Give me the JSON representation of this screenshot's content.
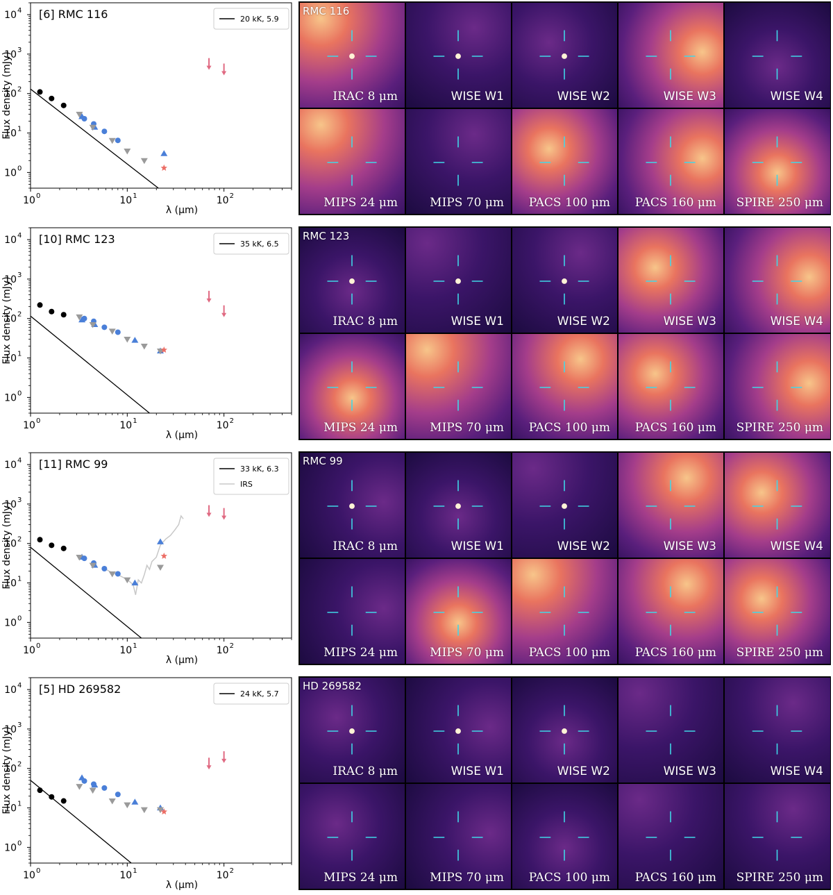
{
  "figure": {
    "ylabel": "Flux density (mJy)",
    "xlabel": "λ (μm)",
    "x_tick_labels": [
      "10",
      "10",
      "10"
    ],
    "x_tick_exponents": [
      "0",
      "1",
      "2"
    ],
    "y_tick_labels": [
      "10",
      "10",
      "10",
      "10",
      "10"
    ],
    "y_tick_exponents": [
      "0",
      "1",
      "2",
      "3",
      "4"
    ],
    "band_labels": [
      "IRAC 8 μm",
      "WISE W1",
      "WISE W2",
      "WISE W3",
      "WISE W4",
      "MIPS 24 μm",
      "MIPS 70 μm",
      "PACS 100 μm",
      "PACS 160 μm",
      "SPIRE 250 μm"
    ],
    "colors": {
      "near_ir": "#000000",
      "spitzer": "#4a7fd8",
      "wise": "#9a9a9a",
      "irs": "#c8c8c8",
      "upper_limit": "#e06a82",
      "star": "#ec6e66",
      "crosshair": "#40d8e8"
    }
  },
  "panels": [
    {
      "label": "[6] RMC 116",
      "image_label": "RMC 116",
      "legend": [
        "20 kK, 5.9"
      ],
      "bright_tiles": [
        0,
        3,
        5,
        7,
        8,
        9
      ],
      "chart_data": {
        "type": "scatter",
        "xscale": "log",
        "yscale": "log",
        "xlim": [
          1,
          500
        ],
        "ylim": [
          0.4,
          20000
        ],
        "xlabel": "λ (μm)",
        "ylabel": "Flux density (mJy)",
        "model_line": {
          "name": "20 kK, 5.9",
          "x": [
            1,
            21
          ],
          "y": [
            130,
            0.4
          ]
        },
        "series": [
          {
            "marker": "circle",
            "color": "#000000",
            "x": [
              1.25,
              1.65,
              2.2
            ],
            "y": [
              110,
              75,
              50
            ]
          },
          {
            "marker": "circle",
            "color": "#4a7fd8",
            "x": [
              3.6,
              4.5,
              5.8,
              8.0
            ],
            "y": [
              23,
              17,
              11,
              6.5
            ]
          },
          {
            "marker": "triangle",
            "color": "#4a7fd8",
            "x": [
              3.4,
              4.6,
              24
            ],
            "y": [
              26,
              14,
              3.0
            ]
          },
          {
            "marker": "triangle-down",
            "color": "#9a9a9a",
            "x": [
              3.2,
              4.4,
              7.0,
              10,
              15
            ],
            "y": [
              30,
              14,
              6.5,
              3.5,
              2.0
            ]
          },
          {
            "marker": "star",
            "color": "#ec6e66",
            "x": [
              24
            ],
            "y": [
              1.3
            ]
          },
          {
            "marker": "upper-limit",
            "color": "#e06a82",
            "x": [
              70,
              100
            ],
            "y": [
              550,
              400
            ]
          }
        ]
      }
    },
    {
      "label": "[10] RMC 123",
      "image_label": "RMC 123",
      "legend": [
        "35 kK, 6.5"
      ],
      "bright_tiles": [
        3,
        4,
        5,
        6,
        7,
        8,
        9
      ],
      "chart_data": {
        "type": "scatter",
        "xscale": "log",
        "yscale": "log",
        "xlim": [
          1,
          500
        ],
        "ylim": [
          0.4,
          20000
        ],
        "xlabel": "λ (μm)",
        "ylabel": "Flux density (mJy)",
        "model_line": {
          "name": "35 kK, 6.5",
          "x": [
            1,
            17
          ],
          "y": [
            115,
            0.4
          ]
        },
        "series": [
          {
            "marker": "circle",
            "color": "#000000",
            "x": [
              1.25,
              1.65,
              2.2
            ],
            "y": [
              220,
              150,
              125
            ]
          },
          {
            "marker": "circle",
            "color": "#4a7fd8",
            "x": [
              3.6,
              4.5,
              5.8,
              8.0
            ],
            "y": [
              100,
              85,
              60,
              45
            ]
          },
          {
            "marker": "triangle",
            "color": "#4a7fd8",
            "x": [
              3.4,
              4.6,
              12,
              22
            ],
            "y": [
              92,
              70,
              28,
              15
            ]
          },
          {
            "marker": "triangle-down",
            "color": "#9a9a9a",
            "x": [
              3.2,
              4.4,
              7.0,
              10,
              15,
              22
            ],
            "y": [
              110,
              70,
              48,
              30,
              20,
              15
            ]
          },
          {
            "marker": "star",
            "color": "#ec6e66",
            "x": [
              24
            ],
            "y": [
              16
            ]
          },
          {
            "marker": "upper-limit",
            "color": "#e06a82",
            "x": [
              70,
              100
            ],
            "y": [
              350,
              150
            ]
          }
        ]
      }
    },
    {
      "label": "[11] RMC 99",
      "image_label": "RMC 99",
      "legend": [
        "33 kK, 6.3",
        "IRS"
      ],
      "bright_tiles": [
        3,
        4,
        6,
        7,
        8,
        9
      ],
      "chart_data": {
        "type": "scatter",
        "xscale": "log",
        "yscale": "log",
        "xlim": [
          1,
          500
        ],
        "ylim": [
          0.4,
          20000
        ],
        "xlabel": "λ (μm)",
        "ylabel": "Flux density (mJy)",
        "model_line": {
          "name": "33 kK, 6.3",
          "x": [
            1,
            14
          ],
          "y": [
            80,
            0.4
          ]
        },
        "irs_line": {
          "name": "IRS",
          "x": [
            5.5,
            6.5,
            7.5,
            8.5,
            9.5,
            10.5,
            11.5,
            12.2,
            13,
            14,
            15,
            16,
            17,
            18,
            20,
            22,
            25,
            28,
            31,
            34,
            36,
            38
          ],
          "y": [
            25,
            20,
            17,
            15,
            13,
            11,
            9,
            5,
            12,
            10,
            16,
            28,
            22,
            35,
            45,
            90,
            130,
            160,
            220,
            300,
            500,
            420
          ]
        },
        "series": [
          {
            "marker": "circle",
            "color": "#000000",
            "x": [
              1.25,
              1.65,
              2.2
            ],
            "y": [
              125,
              90,
              75
            ]
          },
          {
            "marker": "circle",
            "color": "#4a7fd8",
            "x": [
              3.6,
              4.5,
              5.8,
              8.0
            ],
            "y": [
              42,
              32,
              23,
              17
            ]
          },
          {
            "marker": "triangle",
            "color": "#4a7fd8",
            "x": [
              3.4,
              4.6,
              12,
              22
            ],
            "y": [
              45,
              28,
              10,
              110
            ]
          },
          {
            "marker": "triangle-down",
            "color": "#9a9a9a",
            "x": [
              3.2,
              4.4,
              7.0,
              10,
              22
            ],
            "y": [
              45,
              28,
              17,
              12,
              25
            ]
          },
          {
            "marker": "star",
            "color": "#ec6e66",
            "x": [
              24
            ],
            "y": [
              48
            ]
          },
          {
            "marker": "upper-limit",
            "color": "#e06a82",
            "x": [
              70,
              100
            ],
            "y": [
              650,
              550
            ]
          }
        ]
      }
    },
    {
      "label": "[5] HD 269582",
      "image_label": "HD 269582",
      "legend": [
        "24 kK, 5.7"
      ],
      "bright_tiles": [],
      "chart_data": {
        "type": "scatter",
        "xscale": "log",
        "yscale": "log",
        "xlim": [
          1,
          500
        ],
        "ylim": [
          0.4,
          20000
        ],
        "xlabel": "λ (μm)",
        "ylabel": "Flux density (mJy)",
        "model_line": {
          "name": "24 kK, 5.7",
          "x": [
            1,
            11
          ],
          "y": [
            50,
            0.4
          ]
        },
        "series": [
          {
            "marker": "circle",
            "color": "#000000",
            "x": [
              1.25,
              1.65,
              2.2
            ],
            "y": [
              28,
              19,
              15
            ]
          },
          {
            "marker": "circle",
            "color": "#4a7fd8",
            "x": [
              3.6,
              4.5,
              5.8,
              8.0
            ],
            "y": [
              48,
              40,
              32,
              22
            ]
          },
          {
            "marker": "triangle",
            "color": "#4a7fd8",
            "x": [
              3.4,
              4.6,
              12,
              22
            ],
            "y": [
              58,
              38,
              14,
              10
            ]
          },
          {
            "marker": "triangle-down",
            "color": "#9a9a9a",
            "x": [
              3.2,
              4.4,
              7.0,
              10,
              15,
              22
            ],
            "y": [
              35,
              28,
              15,
              12,
              9,
              9
            ]
          },
          {
            "marker": "star",
            "color": "#ec6e66",
            "x": [
              24
            ],
            "y": [
              8
            ]
          },
          {
            "marker": "upper-limit",
            "color": "#e06a82",
            "x": [
              70,
              100
            ],
            "y": [
              130,
              190
            ]
          }
        ]
      }
    }
  ]
}
